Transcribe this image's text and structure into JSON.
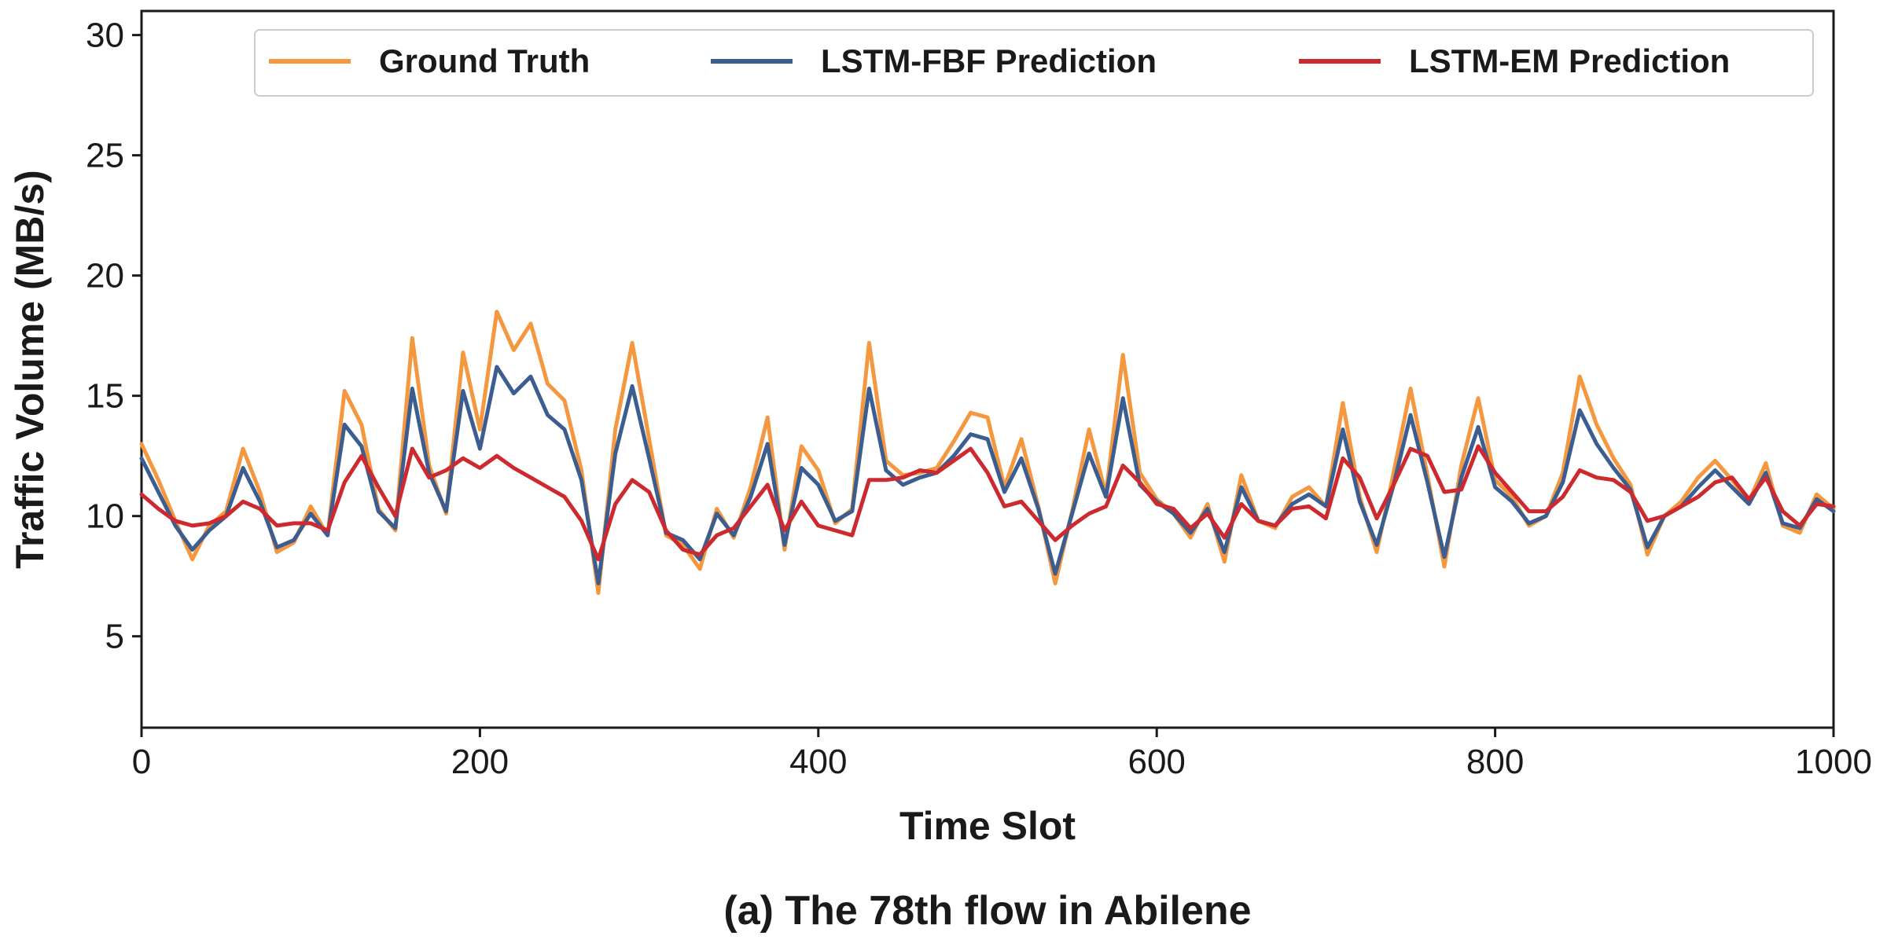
{
  "caption": "(a) The 78th flow in Abilene",
  "chart_data": {
    "type": "line",
    "title": "",
    "xlabel": "Time Slot",
    "ylabel": "Traffic Volume (MB/s)",
    "xlim": [
      0,
      1000
    ],
    "ylim": [
      1.2,
      31
    ],
    "x_ticks": [
      0,
      200,
      400,
      600,
      800,
      1000
    ],
    "y_ticks": [
      5,
      10,
      15,
      20,
      25,
      30
    ],
    "grid": false,
    "legend": "top",
    "series": [
      {
        "name": "Ground Truth",
        "color": "#f4973f",
        "x_start": 0,
        "x_step": 10,
        "values": [
          13.0,
          11.5,
          9.8,
          8.2,
          9.6,
          10.2,
          12.8,
          11.0,
          8.5,
          8.9,
          10.4,
          9.2,
          15.2,
          13.8,
          10.3,
          9.4,
          17.4,
          12.1,
          10.1,
          16.8,
          13.6,
          18.5,
          16.9,
          18.0,
          15.5,
          14.8,
          11.9,
          6.8,
          13.6,
          17.2,
          13.2,
          9.2,
          8.8,
          7.8,
          10.3,
          9.1,
          11.2,
          14.1,
          8.6,
          12.9,
          11.9,
          9.7,
          10.3,
          17.2,
          12.3,
          11.7,
          11.8,
          12.0,
          13.1,
          14.3,
          14.1,
          11.2,
          13.2,
          10.4,
          7.2,
          10.2,
          13.6,
          10.9,
          16.7,
          11.8,
          10.7,
          10.1,
          9.1,
          10.5,
          8.1,
          11.7,
          9.8,
          9.5,
          10.8,
          11.2,
          10.4,
          14.7,
          10.8,
          8.5,
          11.8,
          15.3,
          11.7,
          7.9,
          12.1,
          14.9,
          11.5,
          10.8,
          9.6,
          10.0,
          11.8,
          15.8,
          13.8,
          12.4,
          11.3,
          8.4,
          10.0,
          10.6,
          11.6,
          12.3,
          11.5,
          10.6,
          12.2,
          9.6,
          9.3,
          10.9,
          10.3
        ]
      },
      {
        "name": "LSTM-FBF Prediction",
        "color": "#3b5d8f",
        "x_start": 0,
        "x_step": 10,
        "values": [
          12.4,
          11.0,
          9.6,
          8.6,
          9.4,
          10.0,
          12.0,
          10.6,
          8.7,
          9.0,
          10.1,
          9.2,
          13.8,
          12.9,
          10.2,
          9.5,
          15.3,
          11.8,
          10.2,
          15.2,
          12.8,
          16.2,
          15.1,
          15.8,
          14.2,
          13.6,
          11.5,
          7.2,
          12.6,
          15.4,
          12.4,
          9.3,
          9.0,
          8.2,
          10.1,
          9.2,
          10.8,
          13.0,
          8.8,
          12.0,
          11.3,
          9.8,
          10.2,
          15.3,
          11.9,
          11.3,
          11.6,
          11.8,
          12.5,
          13.4,
          13.2,
          11.0,
          12.4,
          10.3,
          7.6,
          10.1,
          12.6,
          10.8,
          14.9,
          11.3,
          10.6,
          10.1,
          9.3,
          10.3,
          8.5,
          11.2,
          9.8,
          9.6,
          10.5,
          10.9,
          10.4,
          13.6,
          10.6,
          8.8,
          11.3,
          14.2,
          11.4,
          8.3,
          11.6,
          13.7,
          11.2,
          10.6,
          9.7,
          10.0,
          11.4,
          14.4,
          13.0,
          12.0,
          11.1,
          8.7,
          10.0,
          10.4,
          11.2,
          11.9,
          11.2,
          10.5,
          11.8,
          9.7,
          9.5,
          10.7,
          10.2
        ]
      },
      {
        "name": "LSTM-EM Prediction",
        "color": "#cc2a2f",
        "x_start": 0,
        "x_step": 10,
        "values": [
          10.9,
          10.3,
          9.8,
          9.6,
          9.7,
          10.0,
          10.6,
          10.3,
          9.6,
          9.7,
          9.7,
          9.4,
          11.4,
          12.5,
          11.2,
          10.0,
          12.8,
          11.6,
          11.9,
          12.4,
          12.0,
          12.5,
          12.0,
          11.6,
          11.2,
          10.8,
          9.8,
          8.2,
          10.5,
          11.5,
          11.0,
          9.4,
          8.6,
          8.4,
          9.2,
          9.5,
          10.4,
          11.3,
          9.4,
          10.6,
          9.6,
          9.4,
          9.2,
          11.5,
          11.5,
          11.6,
          11.9,
          11.8,
          12.3,
          12.8,
          11.8,
          10.4,
          10.6,
          9.8,
          9.0,
          9.6,
          10.1,
          10.4,
          12.1,
          11.4,
          10.5,
          10.3,
          9.5,
          10.1,
          9.1,
          10.5,
          9.8,
          9.6,
          10.3,
          10.4,
          9.9,
          12.4,
          11.6,
          9.9,
          11.3,
          12.8,
          12.5,
          11.0,
          11.1,
          12.9,
          11.8,
          11.0,
          10.2,
          10.2,
          10.8,
          11.9,
          11.6,
          11.5,
          11.0,
          9.8,
          10.0,
          10.4,
          10.8,
          11.4,
          11.6,
          10.7,
          11.6,
          10.2,
          9.6,
          10.5,
          10.4
        ]
      }
    ]
  }
}
